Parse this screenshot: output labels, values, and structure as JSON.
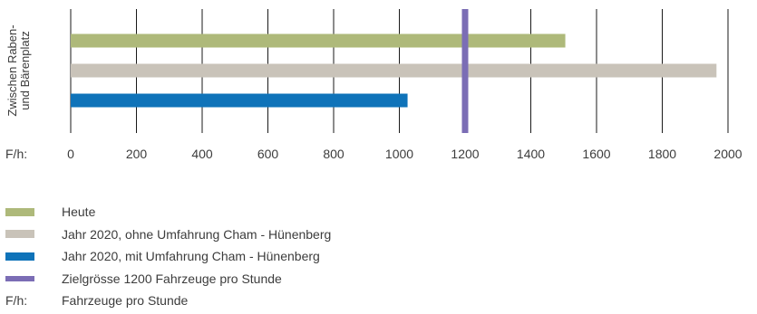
{
  "chart_data": {
    "type": "bar",
    "orientation": "horizontal",
    "category_label_lines": [
      "Zwischen Raben-",
      "und Bärenplatz"
    ],
    "axis_prefix": "F/h:",
    "xlim": [
      0,
      2000
    ],
    "ticks": [
      0,
      200,
      400,
      600,
      800,
      1000,
      1200,
      1400,
      1600,
      1800,
      2000
    ],
    "grid": true,
    "series": [
      {
        "name": "Heute",
        "value": 1505,
        "color": "#aeb97a"
      },
      {
        "name": "Jahr 2020, ohne Umfahrung Cham - Hünenberg",
        "value": 1965,
        "color": "#c9c3b9"
      },
      {
        "name": "Jahr 2020, mit Umfahrung Cham - Hünenberg",
        "value": 1025,
        "color": "#0f73b9"
      }
    ],
    "reference_line": {
      "name": "Zielgrösse 1200 Fahrzeuge pro Stunde",
      "value": 1200,
      "color": "#7b6db5"
    },
    "legend_placement": "bottom"
  },
  "legend": {
    "unit_key": "F/h:",
    "unit_text": "Fahrzeuge pro Stunde"
  }
}
